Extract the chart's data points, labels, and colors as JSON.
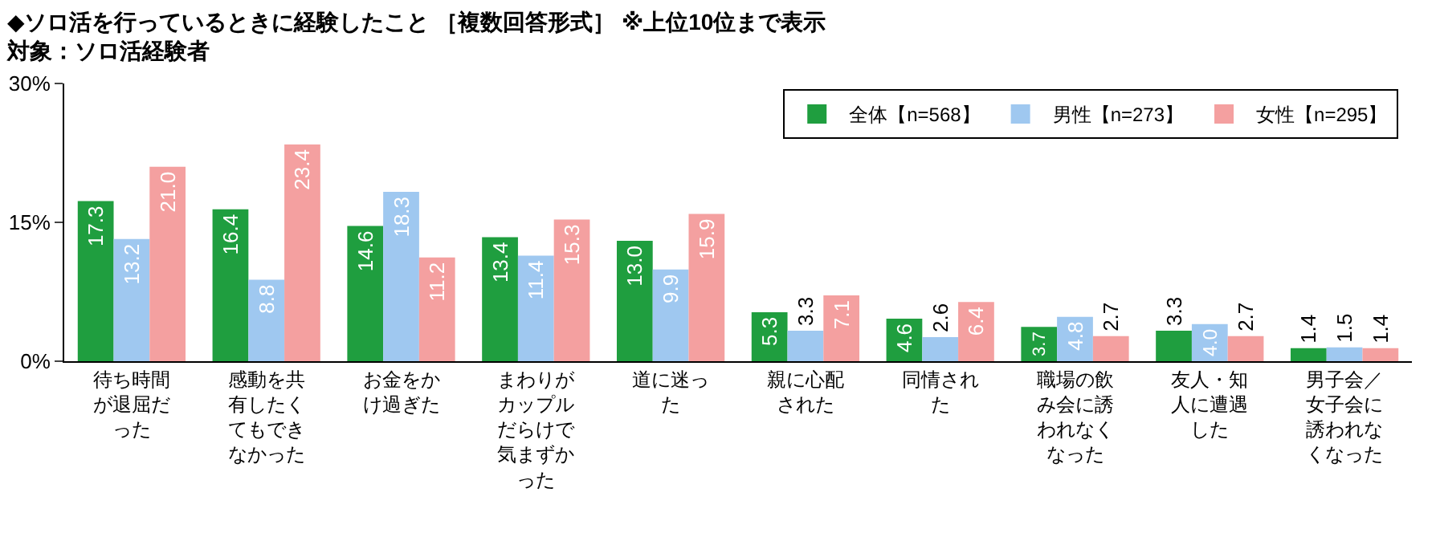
{
  "chart_data": {
    "type": "bar",
    "title": "◆ソロ活を行っているときに経験したこと ［複数回答形式］ ※上位10位まで表示",
    "subtitle": "対象：ソロ活経験者",
    "categories": [
      "待ち時間が退屈だった",
      "感動を共有したくてもできなかった",
      "お金をかけ過ぎた",
      "まわりがカップルだらけで気まずかった",
      "道に迷った",
      "親に心配された",
      "同情された",
      "職場の飲み会に誘われなくなった",
      "友人・知人に遭遇した",
      "男子会／女子会に誘われなくなった"
    ],
    "series": [
      {
        "name": "全体【n=568】",
        "color": "#1f9e3f",
        "values": [
          17.3,
          16.4,
          14.6,
          13.4,
          13.0,
          5.3,
          4.6,
          3.7,
          3.3,
          1.4
        ],
        "value_labels": [
          "17.3",
          "16.4",
          "14.6",
          "13.4",
          "13.0",
          "5.3",
          "4.6",
          "3.7",
          "3.3",
          "1.4"
        ]
      },
      {
        "name": "男性【n=273】",
        "color": "#9fc8f0",
        "values": [
          13.2,
          8.8,
          18.3,
          11.4,
          9.9,
          3.3,
          2.6,
          4.8,
          4.0,
          1.5
        ],
        "value_labels": [
          "13.2",
          "8.8",
          "18.3",
          "11.4",
          "9.9",
          "3.3",
          "2.6",
          "4.8",
          "4.0",
          "1.5"
        ]
      },
      {
        "name": "女性【n=295】",
        "color": "#f4a0a0",
        "values": [
          21.0,
          23.4,
          11.2,
          15.3,
          15.9,
          7.1,
          6.4,
          2.7,
          2.7,
          1.4
        ],
        "value_labels": [
          "21.0",
          "23.4",
          "11.2",
          "15.3",
          "15.9",
          "7.1",
          "6.4",
          "2.7",
          "2.7",
          "1.4"
        ]
      }
    ],
    "ylim": [
      0,
      30
    ],
    "yticks": [
      {
        "value": 0,
        "label": "0%"
      },
      {
        "value": 15,
        "label": "15%"
      },
      {
        "value": 30,
        "label": "30%"
      }
    ],
    "legend": "top right",
    "grid": false
  }
}
